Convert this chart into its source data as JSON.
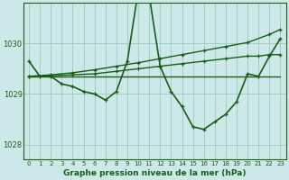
{
  "xlabel": "Graphe pression niveau de la mer (hPa)",
  "xlim": [
    -0.5,
    23.5
  ],
  "ylim": [
    1027.7,
    1030.8
  ],
  "yticks": [
    1028,
    1029,
    1030
  ],
  "xticks": [
    0,
    1,
    2,
    3,
    4,
    5,
    6,
    7,
    8,
    9,
    10,
    11,
    12,
    13,
    14,
    15,
    16,
    17,
    18,
    19,
    20,
    21,
    22,
    23
  ],
  "bg_color": "#cce8e8",
  "grid_color": "#99ccbb",
  "line_color": "#1a5c1a",
  "series": [
    {
      "x": [
        0,
        1,
        2,
        3,
        4,
        5,
        6,
        7,
        8,
        9,
        10,
        11,
        12,
        13,
        14,
        15,
        16,
        17,
        18,
        19,
        20,
        21,
        22,
        23
      ],
      "y": [
        1029.65,
        1029.35,
        1029.35,
        1029.2,
        1029.15,
        1029.05,
        1029.0,
        1028.88,
        1029.05,
        1029.65,
        1031.05,
        1030.95,
        1029.55,
        1029.05,
        1028.75,
        1028.35,
        1028.3,
        1028.45,
        1028.6,
        1028.85,
        1029.4,
        1029.35,
        1029.75,
        1030.1
      ],
      "marker": "+",
      "lw": 1.2
    },
    {
      "x": [
        0,
        1,
        2,
        3,
        4,
        5,
        6,
        7,
        8,
        9,
        10,
        11,
        12,
        13,
        14,
        15,
        16,
        17,
        18,
        19,
        20,
        21,
        22,
        23
      ],
      "y": [
        1029.35,
        1029.35,
        1029.35,
        1029.35,
        1029.35,
        1029.35,
        1029.35,
        1029.35,
        1029.35,
        1029.35,
        1029.35,
        1029.35,
        1029.35,
        1029.35,
        1029.35,
        1029.35,
        1029.35,
        1029.35,
        1029.35,
        1029.35,
        1029.35,
        1029.35,
        1029.35,
        1029.35
      ],
      "marker": null,
      "lw": 1.0
    },
    {
      "x": [
        0,
        2,
        4,
        6,
        8,
        10,
        12,
        14,
        16,
        18,
        20,
        22,
        23
      ],
      "y": [
        1029.35,
        1029.38,
        1029.42,
        1029.48,
        1029.55,
        1029.62,
        1029.7,
        1029.78,
        1029.86,
        1029.94,
        1030.02,
        1030.18,
        1030.28
      ],
      "marker": "+",
      "lw": 1.0
    },
    {
      "x": [
        0,
        2,
        4,
        6,
        8,
        10,
        12,
        14,
        16,
        18,
        20,
        21,
        22,
        23
      ],
      "y": [
        1029.35,
        1029.36,
        1029.38,
        1029.4,
        1029.45,
        1029.5,
        1029.55,
        1029.6,
        1029.65,
        1029.7,
        1029.75,
        1029.75,
        1029.78,
        1029.78
      ],
      "marker": "+",
      "lw": 1.0
    }
  ]
}
